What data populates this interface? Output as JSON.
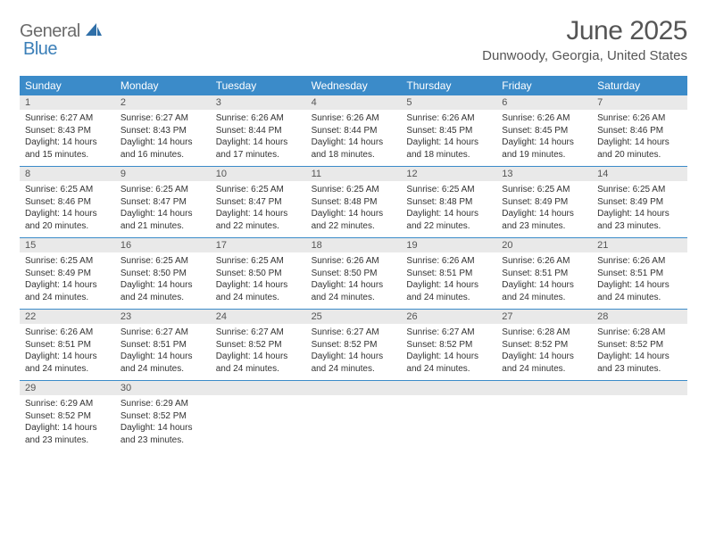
{
  "brand": {
    "part1": "General",
    "part2": "Blue"
  },
  "title": "June 2025",
  "location": "Dunwoody, Georgia, United States",
  "colors": {
    "header_bg": "#3b8bc9",
    "daynum_bg": "#e9e9e9",
    "rule": "#3b8bc9",
    "brand_gray": "#6b6b6b",
    "brand_blue": "#3b7fb8"
  },
  "weekdays": [
    "Sunday",
    "Monday",
    "Tuesday",
    "Wednesday",
    "Thursday",
    "Friday",
    "Saturday"
  ],
  "weeks": [
    {
      "nums": [
        "1",
        "2",
        "3",
        "4",
        "5",
        "6",
        "7"
      ],
      "cells": [
        {
          "sunrise": "6:27 AM",
          "sunset": "8:43 PM",
          "daylight": "14 hours and 15 minutes."
        },
        {
          "sunrise": "6:27 AM",
          "sunset": "8:43 PM",
          "daylight": "14 hours and 16 minutes."
        },
        {
          "sunrise": "6:26 AM",
          "sunset": "8:44 PM",
          "daylight": "14 hours and 17 minutes."
        },
        {
          "sunrise": "6:26 AM",
          "sunset": "8:44 PM",
          "daylight": "14 hours and 18 minutes."
        },
        {
          "sunrise": "6:26 AM",
          "sunset": "8:45 PM",
          "daylight": "14 hours and 18 minutes."
        },
        {
          "sunrise": "6:26 AM",
          "sunset": "8:45 PM",
          "daylight": "14 hours and 19 minutes."
        },
        {
          "sunrise": "6:26 AM",
          "sunset": "8:46 PM",
          "daylight": "14 hours and 20 minutes."
        }
      ]
    },
    {
      "nums": [
        "8",
        "9",
        "10",
        "11",
        "12",
        "13",
        "14"
      ],
      "cells": [
        {
          "sunrise": "6:25 AM",
          "sunset": "8:46 PM",
          "daylight": "14 hours and 20 minutes."
        },
        {
          "sunrise": "6:25 AM",
          "sunset": "8:47 PM",
          "daylight": "14 hours and 21 minutes."
        },
        {
          "sunrise": "6:25 AM",
          "sunset": "8:47 PM",
          "daylight": "14 hours and 22 minutes."
        },
        {
          "sunrise": "6:25 AM",
          "sunset": "8:48 PM",
          "daylight": "14 hours and 22 minutes."
        },
        {
          "sunrise": "6:25 AM",
          "sunset": "8:48 PM",
          "daylight": "14 hours and 22 minutes."
        },
        {
          "sunrise": "6:25 AM",
          "sunset": "8:49 PM",
          "daylight": "14 hours and 23 minutes."
        },
        {
          "sunrise": "6:25 AM",
          "sunset": "8:49 PM",
          "daylight": "14 hours and 23 minutes."
        }
      ]
    },
    {
      "nums": [
        "15",
        "16",
        "17",
        "18",
        "19",
        "20",
        "21"
      ],
      "cells": [
        {
          "sunrise": "6:25 AM",
          "sunset": "8:49 PM",
          "daylight": "14 hours and 24 minutes."
        },
        {
          "sunrise": "6:25 AM",
          "sunset": "8:50 PM",
          "daylight": "14 hours and 24 minutes."
        },
        {
          "sunrise": "6:25 AM",
          "sunset": "8:50 PM",
          "daylight": "14 hours and 24 minutes."
        },
        {
          "sunrise": "6:26 AM",
          "sunset": "8:50 PM",
          "daylight": "14 hours and 24 minutes."
        },
        {
          "sunrise": "6:26 AM",
          "sunset": "8:51 PM",
          "daylight": "14 hours and 24 minutes."
        },
        {
          "sunrise": "6:26 AM",
          "sunset": "8:51 PM",
          "daylight": "14 hours and 24 minutes."
        },
        {
          "sunrise": "6:26 AM",
          "sunset": "8:51 PM",
          "daylight": "14 hours and 24 minutes."
        }
      ]
    },
    {
      "nums": [
        "22",
        "23",
        "24",
        "25",
        "26",
        "27",
        "28"
      ],
      "cells": [
        {
          "sunrise": "6:26 AM",
          "sunset": "8:51 PM",
          "daylight": "14 hours and 24 minutes."
        },
        {
          "sunrise": "6:27 AM",
          "sunset": "8:51 PM",
          "daylight": "14 hours and 24 minutes."
        },
        {
          "sunrise": "6:27 AM",
          "sunset": "8:52 PM",
          "daylight": "14 hours and 24 minutes."
        },
        {
          "sunrise": "6:27 AM",
          "sunset": "8:52 PM",
          "daylight": "14 hours and 24 minutes."
        },
        {
          "sunrise": "6:27 AM",
          "sunset": "8:52 PM",
          "daylight": "14 hours and 24 minutes."
        },
        {
          "sunrise": "6:28 AM",
          "sunset": "8:52 PM",
          "daylight": "14 hours and 24 minutes."
        },
        {
          "sunrise": "6:28 AM",
          "sunset": "8:52 PM",
          "daylight": "14 hours and 23 minutes."
        }
      ]
    },
    {
      "nums": [
        "29",
        "30",
        "",
        "",
        "",
        "",
        ""
      ],
      "cells": [
        {
          "sunrise": "6:29 AM",
          "sunset": "8:52 PM",
          "daylight": "14 hours and 23 minutes."
        },
        {
          "sunrise": "6:29 AM",
          "sunset": "8:52 PM",
          "daylight": "14 hours and 23 minutes."
        },
        null,
        null,
        null,
        null,
        null
      ]
    }
  ],
  "labels": {
    "sunrise": "Sunrise:",
    "sunset": "Sunset:",
    "daylight": "Daylight:"
  }
}
